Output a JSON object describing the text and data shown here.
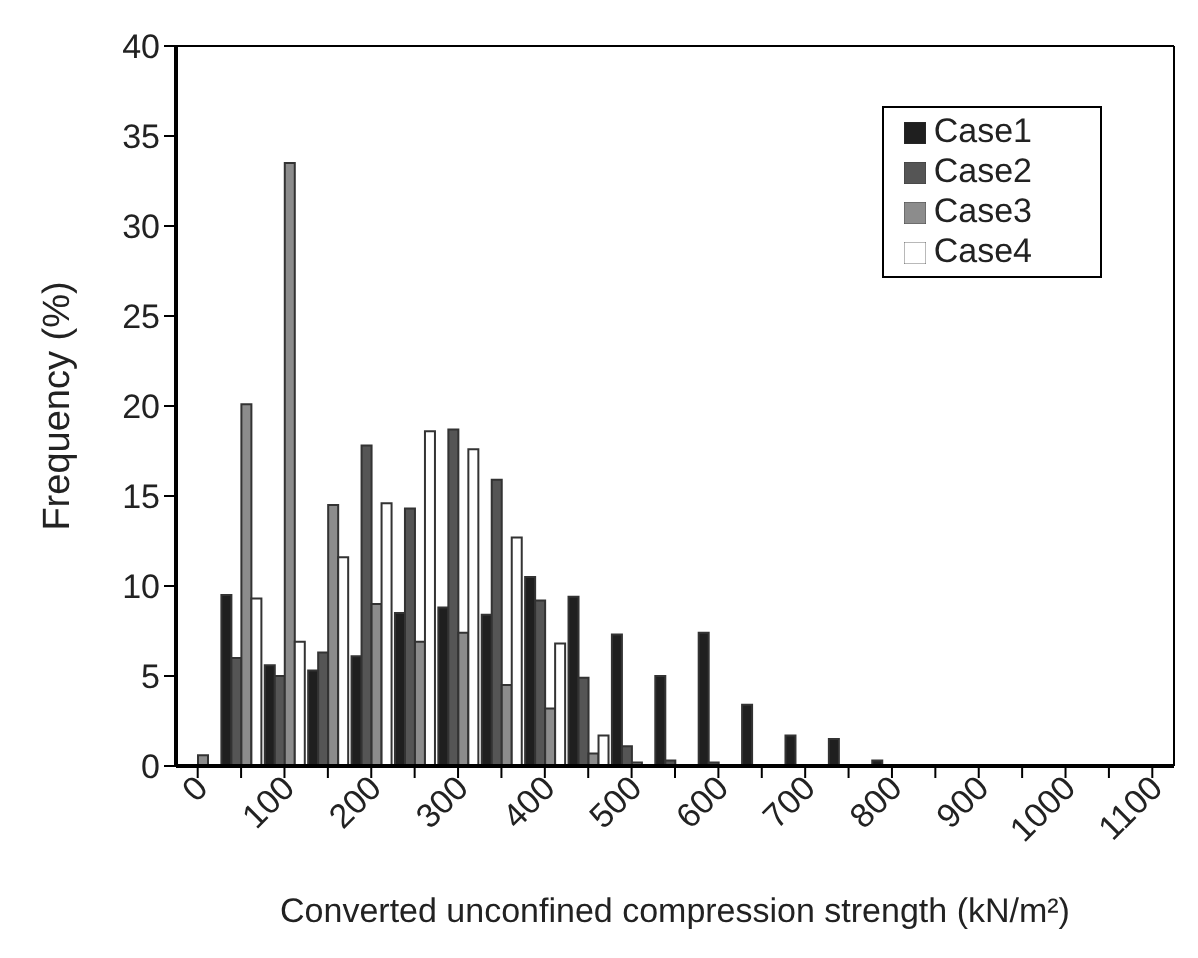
{
  "chart_data": {
    "type": "bar",
    "categories": [
      "0",
      null,
      "100",
      null,
      "200",
      null,
      "300",
      null,
      "400",
      null,
      "500",
      null,
      "600",
      null,
      "700",
      null,
      "800",
      null,
      "900",
      null,
      "1000",
      null,
      "1100"
    ],
    "series": [
      {
        "name": "Case1",
        "color": "#1f1f1f",
        "values": [
          0,
          9.5,
          5.6,
          5.3,
          6.1,
          8.5,
          8.8,
          8.4,
          10.5,
          9.4,
          7.3,
          5.0,
          7.4,
          3.4,
          1.7,
          1.5,
          0.3,
          0,
          0,
          0,
          0,
          0,
          0
        ]
      },
      {
        "name": "Case2",
        "color": "#555555",
        "values": [
          0,
          6.0,
          5.0,
          6.3,
          17.8,
          14.3,
          18.7,
          15.9,
          9.2,
          4.9,
          1.1,
          0.3,
          0.2,
          0,
          0,
          0,
          0,
          0,
          0,
          0,
          0,
          0,
          0
        ]
      },
      {
        "name": "Case3",
        "color": "#8c8c8c",
        "values": [
          0.6,
          20.1,
          33.5,
          14.5,
          9.0,
          6.9,
          7.4,
          4.5,
          3.2,
          0.7,
          0.2,
          0,
          0,
          0,
          0,
          0,
          0,
          0,
          0,
          0,
          0,
          0,
          0
        ]
      },
      {
        "name": "Case4",
        "color": "#ffffff",
        "values": [
          0,
          9.3,
          6.9,
          11.6,
          14.6,
          18.6,
          17.6,
          12.7,
          6.8,
          1.7,
          0,
          0,
          0,
          0,
          0,
          0,
          0,
          0,
          0,
          0,
          0,
          0,
          0
        ]
      }
    ],
    "xlabel": "Converted unconfined compression strength  (kN/m²)",
    "ylabel": "Frequency  (%)",
    "ylim": [
      0,
      40
    ],
    "yticks": [
      0,
      5,
      10,
      15,
      20,
      25,
      30,
      35,
      40
    ],
    "grid": false,
    "legend": "top right"
  }
}
